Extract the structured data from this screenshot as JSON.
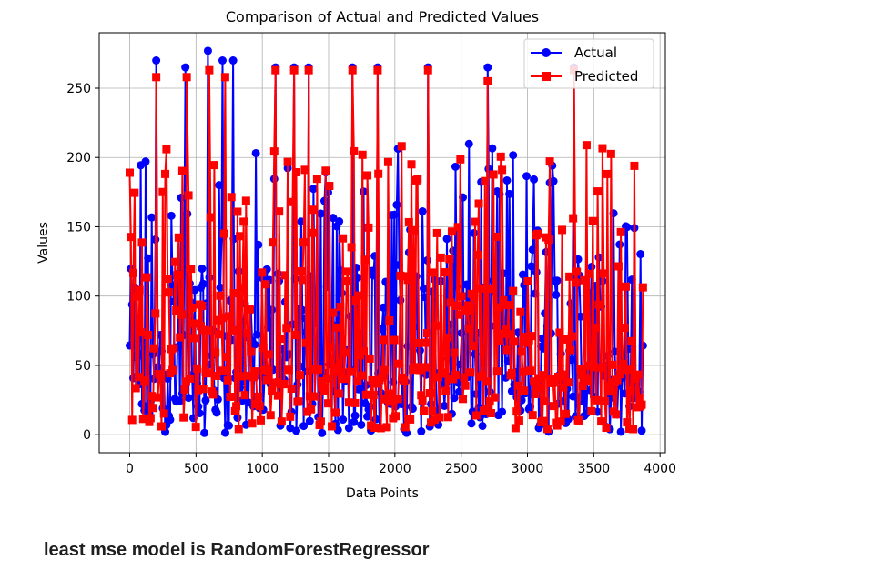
{
  "chart_data": {
    "type": "line",
    "title": "Comparison of Actual and Predicted Values",
    "xlabel": "Data Points",
    "ylabel": "Values",
    "xlim": [
      -230,
      4040
    ],
    "ylim": [
      -13,
      290
    ],
    "x_ticks": [
      0,
      500,
      1000,
      1500,
      2000,
      2500,
      3000,
      3500,
      4000
    ],
    "y_ticks": [
      0,
      50,
      100,
      150,
      200,
      250
    ],
    "grid": true,
    "legend_position": "top-right",
    "n_points": 3880,
    "series": [
      {
        "name": "Actual",
        "color": "#0000ff",
        "marker": "circle",
        "approx_range": [
          1,
          277
        ],
        "visible_peaks": [
          [
            200,
            270
          ],
          [
            420,
            265
          ],
          [
            590,
            277
          ],
          [
            700,
            270
          ],
          [
            780,
            270
          ],
          [
            1100,
            265
          ],
          [
            1240,
            265
          ],
          [
            1350,
            265
          ],
          [
            1680,
            265
          ],
          [
            1870,
            265
          ],
          [
            2250,
            265
          ],
          [
            2700,
            265
          ],
          [
            3350,
            265
          ]
        ]
      },
      {
        "name": "Predicted",
        "color": "#ff0000",
        "marker": "square",
        "approx_range": [
          4,
          265
        ],
        "visible_peaks": [
          [
            200,
            258
          ],
          [
            430,
            258
          ],
          [
            600,
            263
          ],
          [
            720,
            258
          ],
          [
            1100,
            263
          ],
          [
            1240,
            263
          ],
          [
            1350,
            263
          ],
          [
            1680,
            263
          ],
          [
            1870,
            263
          ],
          [
            2250,
            263
          ],
          [
            2700,
            255
          ],
          [
            3350,
            263
          ]
        ]
      }
    ]
  },
  "caption": "least mse model is RandomForestRegressor"
}
